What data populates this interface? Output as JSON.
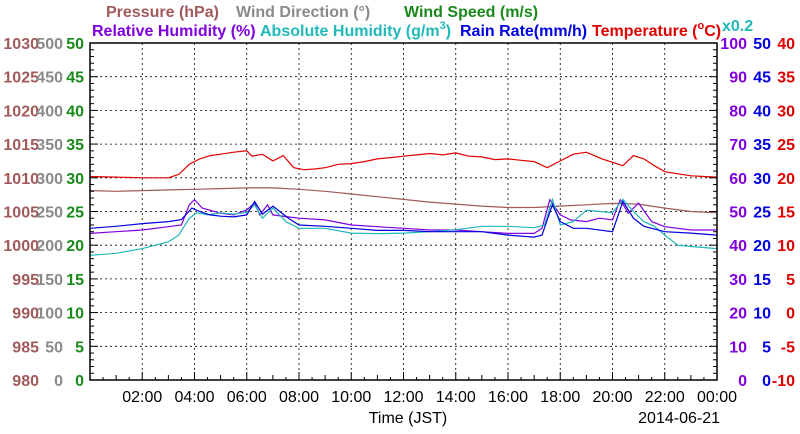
{
  "chart_data": {
    "type": "line",
    "date": "2014-06-21",
    "xlabel": "Time (JST)",
    "x_tick_labels": [
      "02:00",
      "04:00",
      "06:00",
      "08:00",
      "10:00",
      "12:00",
      "14:00",
      "16:00",
      "18:00",
      "20:00",
      "22:00",
      "00:00"
    ],
    "x_range_hours": [
      0,
      24
    ],
    "grid": true,
    "legend": {
      "pressure": "Pressure (hPa)",
      "wind_direction": "Wind Direction (°)",
      "wind_speed": "Wind Speed (m/s)",
      "relative_humidity": "Relative Humidity (%)",
      "absolute_humidity_prefix": "Absolute Humidity (g/m",
      "absolute_humidity_sup": "3",
      "absolute_humidity_suffix": ")",
      "rain_rate": "Rain Rate(mm/h)",
      "temperature_prefix": "Temperature (",
      "temperature_sup": "o",
      "temperature_suffix": "C)",
      "scale_note": "x0.2"
    },
    "colors": {
      "pressure": "#a05a5a",
      "wind_direction": "#8a8a8a",
      "wind_speed": "#1a8a1a",
      "relative_humidity": "#8000e0",
      "absolute_humidity": "#20b8b8",
      "rain_rate": "#0000e0",
      "temperature": "#e00000"
    },
    "axes": {
      "pressure": {
        "range": [
          980,
          1030
        ],
        "ticks": [
          "980",
          "985",
          "990",
          "995",
          "1000",
          "1005",
          "1010",
          "1015",
          "1020",
          "1025",
          "1030"
        ]
      },
      "wind_direction": {
        "range": [
          0,
          500
        ],
        "ticks": [
          "0",
          "50",
          "100",
          "150",
          "200",
          "250",
          "300",
          "350",
          "400",
          "450",
          "500"
        ]
      },
      "wind_speed": {
        "range": [
          0,
          50
        ],
        "ticks": [
          "0",
          "5",
          "10",
          "15",
          "20",
          "25",
          "30",
          "35",
          "40",
          "45",
          "50"
        ]
      },
      "relative_humidity": {
        "range": [
          0,
          100
        ],
        "ticks": [
          "0",
          "10",
          "20",
          "30",
          "40",
          "50",
          "60",
          "70",
          "80",
          "90",
          "100"
        ]
      },
      "rain_rate": {
        "range": [
          0,
          50
        ],
        "ticks": [
          "0",
          "5",
          "10",
          "15",
          "20",
          "25",
          "30",
          "35",
          "40",
          "45",
          "50"
        ]
      },
      "temperature": {
        "range": [
          -10,
          40
        ],
        "ticks": [
          "-10",
          "-5",
          "0",
          "5",
          "10",
          "15",
          "20",
          "25",
          "30",
          "35",
          "40"
        ]
      }
    },
    "series": [
      {
        "name": "Temperature (°C)",
        "key": "temperature",
        "axis": "temperature",
        "x": [
          0,
          1,
          2,
          3,
          3.4,
          3.8,
          4.2,
          4.6,
          5.0,
          5.5,
          6.0,
          6.2,
          6.6,
          7.0,
          7.4,
          7.8,
          8.2,
          8.6,
          9.0,
          9.5,
          10.0,
          10.5,
          11.0,
          11.5,
          12.0,
          12.5,
          13.0,
          13.5,
          14.0,
          14.5,
          15.0,
          15.5,
          16.0,
          16.5,
          17.0,
          17.5,
          18.0,
          18.5,
          19.0,
          19.3,
          19.6,
          20.0,
          20.4,
          20.8,
          21.2,
          21.6,
          22.0,
          22.5,
          23.0,
          23.5,
          24.0
        ],
        "y": [
          20.2,
          20.1,
          20.0,
          20.0,
          20.5,
          22.0,
          22.8,
          23.3,
          23.5,
          23.8,
          24.0,
          23.2,
          23.5,
          22.5,
          23.3,
          21.5,
          21.2,
          21.3,
          21.5,
          22.0,
          22.1,
          22.4,
          22.8,
          23.0,
          23.2,
          23.4,
          23.6,
          23.4,
          23.7,
          23.2,
          23.1,
          22.7,
          22.8,
          22.6,
          22.4,
          21.5,
          22.5,
          23.5,
          23.8,
          23.3,
          22.8,
          22.3,
          21.8,
          23.3,
          22.8,
          21.8,
          20.9,
          20.6,
          20.3,
          20.2,
          20.1
        ]
      },
      {
        "name": "Pressure (hPa)",
        "key": "pressure",
        "axis": "pressure",
        "x": [
          0,
          1,
          2,
          3,
          4,
          5,
          6,
          7,
          8,
          9,
          10,
          11,
          12,
          13,
          14,
          15,
          16,
          17,
          18,
          19,
          20,
          21,
          22,
          23,
          24
        ],
        "y": [
          1008.1,
          1008.0,
          1008.1,
          1008.2,
          1008.3,
          1008.4,
          1008.5,
          1008.5,
          1008.3,
          1008.0,
          1007.6,
          1007.2,
          1006.8,
          1006.4,
          1006.1,
          1005.8,
          1005.6,
          1005.6,
          1005.8,
          1006.0,
          1006.2,
          1006.1,
          1005.5,
          1005.0,
          1004.8
        ]
      },
      {
        "name": "Relative Humidity (%)",
        "key": "relative_humidity",
        "axis": "relative_humidity",
        "x": [
          0,
          1,
          2,
          3,
          3.5,
          3.8,
          4.0,
          4.3,
          5.0,
          5.5,
          6.0,
          6.3,
          6.5,
          6.8,
          7.0,
          7.5,
          8.0,
          9.0,
          10.0,
          11.0,
          12.0,
          13.0,
          14.0,
          15.0,
          16.0,
          17.0,
          17.3,
          17.6,
          18.0,
          18.4,
          19.0,
          19.5,
          20.0,
          20.3,
          20.6,
          21.0,
          21.5,
          22.0,
          23.0,
          24.0
        ],
        "y": [
          43.5,
          44,
          44.5,
          45.5,
          46,
          52,
          53.5,
          51,
          49.5,
          49,
          50.5,
          52.5,
          49,
          52,
          49,
          48.5,
          48,
          47.5,
          46,
          45.5,
          45,
          44.5,
          44.5,
          44,
          43.5,
          43.5,
          45,
          53.5,
          49,
          47.5,
          47,
          48,
          47.5,
          53.5,
          49.5,
          52.5,
          47,
          45.5,
          44.5,
          44.5
        ]
      },
      {
        "name": "Absolute Humidity (g/m3)",
        "key": "absolute_humidity",
        "axis": "rain_rate",
        "x": [
          0,
          1,
          2,
          3,
          3.4,
          3.8,
          4.1,
          4.5,
          5.0,
          5.5,
          6.0,
          6.3,
          6.6,
          7.0,
          7.5,
          8.0,
          9.0,
          10.0,
          11.0,
          12.0,
          13.0,
          14.0,
          15.0,
          16.0,
          17.0,
          17.4,
          17.7,
          18.0,
          18.5,
          19.0,
          19.5,
          20.0,
          20.4,
          20.8,
          21.2,
          21.6,
          22.0,
          22.5,
          23.0,
          24.0
        ],
        "y": [
          18.5,
          18.8,
          19.5,
          20.5,
          21.5,
          24,
          24.8,
          24.5,
          24.8,
          24.6,
          24.9,
          26,
          24,
          25.5,
          23.5,
          22.5,
          22.5,
          21.8,
          21.7,
          21.8,
          22,
          22.3,
          22.8,
          22.8,
          22.6,
          23,
          26.8,
          23,
          23.5,
          25.2,
          25,
          24.8,
          26.8,
          25,
          23.5,
          22.8,
          21.5,
          20,
          19.8,
          19.5
        ]
      },
      {
        "name": "Rain Rate(mm/h)",
        "key": "rain_rate",
        "axis": "rain_rate",
        "x": [
          0,
          1,
          2,
          3,
          3.5,
          3.9,
          4.2,
          4.6,
          5.0,
          5.5,
          6.0,
          6.3,
          6.6,
          7.0,
          7.6,
          8.0,
          9.0,
          10.0,
          11.0,
          12.0,
          13.0,
          14.0,
          15.0,
          16.0,
          17.0,
          17.3,
          17.7,
          18.0,
          18.5,
          19.0,
          20.0,
          20.4,
          20.8,
          21.2,
          22.0,
          23.0,
          24.0
        ],
        "y": [
          22.5,
          22.8,
          23.2,
          23.5,
          23.8,
          25.5,
          25.0,
          24.5,
          24.3,
          24.2,
          24.5,
          26.5,
          24.6,
          25.8,
          24.0,
          23.0,
          22.8,
          22.5,
          22.2,
          22.2,
          22.0,
          22.0,
          22.0,
          21.5,
          21.2,
          21.5,
          26.0,
          23.5,
          22.5,
          22.5,
          22.0,
          26.5,
          24.0,
          22.8,
          22.0,
          21.8,
          21.5
        ]
      }
    ]
  }
}
